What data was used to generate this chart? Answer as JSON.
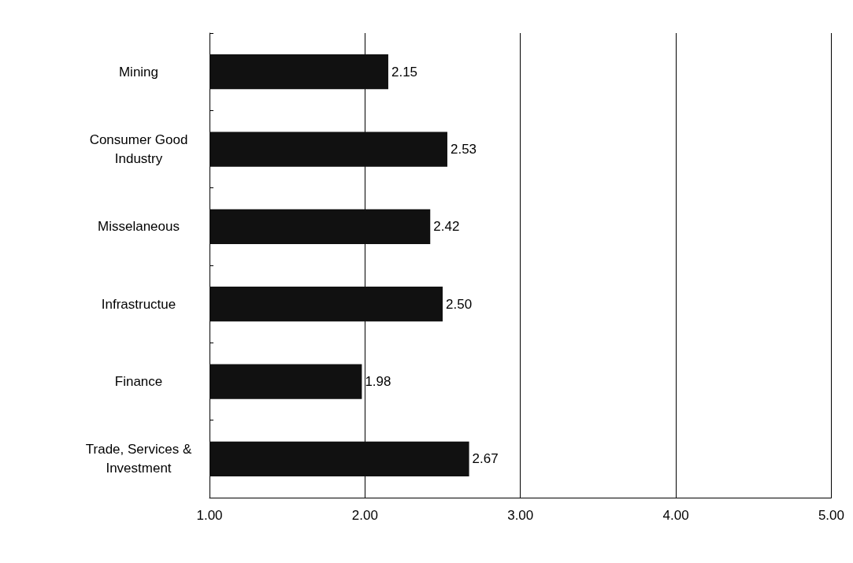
{
  "chart_data": {
    "type": "bar",
    "orientation": "horizontal",
    "categories": [
      "Mining",
      "Consumer Good\nIndustry",
      "Misselaneous",
      "Infrastructue",
      "Finance",
      "Trade, Services &\nInvestment"
    ],
    "values": [
      2.15,
      2.53,
      2.42,
      2.5,
      1.98,
      2.67
    ],
    "value_labels": [
      "2.15",
      "2.53",
      "2.42",
      "2.50",
      "1.98",
      "2.67"
    ],
    "color": "#111111",
    "xlim": [
      1,
      5
    ],
    "xticks": [
      {
        "value": 1,
        "label": "1.00"
      },
      {
        "value": 2,
        "label": "2.00"
      },
      {
        "value": 3,
        "label": "3.00"
      },
      {
        "value": 4,
        "label": "4.00"
      },
      {
        "value": 5,
        "label": "5.00"
      }
    ],
    "grid": "x"
  }
}
